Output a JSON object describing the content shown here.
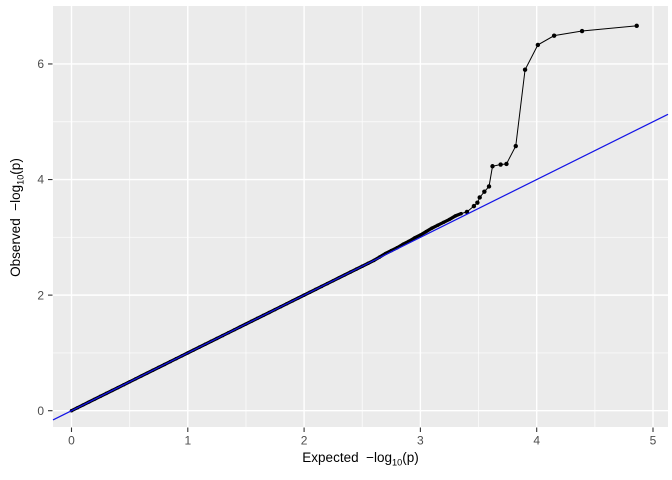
{
  "figure": {
    "background_color": "#FFFFFF",
    "panel_color": "#EBEBEB",
    "grid_color": "#FFFFFF",
    "tick_mark_color": "#333333",
    "tick_label_color": "#4D4D4D",
    "axis_title_color": "#000000",
    "point_color": "#000000",
    "identity_line_color": "#1414E6"
  },
  "chart_data": {
    "type": "scatter",
    "title": "",
    "xlabel": "Expected −log10(p)",
    "ylabel": "Observed −log10(p)",
    "xlabel_parts": {
      "prefix": "Expected  −log",
      "sub": "10",
      "suffix": "(p)"
    },
    "ylabel_parts": {
      "prefix": "Observed  −log",
      "sub": "10",
      "suffix": "(p)"
    },
    "xlim": [
      -0.159,
      5.129
    ],
    "ylim": [
      -0.282,
      7.003
    ],
    "x_ticks": [
      0,
      1,
      2,
      3,
      4,
      5
    ],
    "x_tick_labels": [
      "0",
      "1",
      "2",
      "3",
      "4",
      "5"
    ],
    "y_ticks": [
      0,
      2,
      4,
      6
    ],
    "y_tick_labels": [
      "0",
      "2",
      "4",
      "6"
    ],
    "x_minor_gridlines": [
      0.5,
      1.5,
      2.5,
      3.5,
      4.5
    ],
    "y_minor_gridlines": [
      1,
      3,
      5
    ],
    "grid": true,
    "legend": "none",
    "identity_line": {
      "slope": 1,
      "intercept": 0
    },
    "series": [
      {
        "name": "observed-vs-expected-dense",
        "marker": "point",
        "connected": true,
        "points": [
          [
            0,
            0
          ],
          [
            0.05,
            0.05
          ],
          [
            0.1,
            0.1
          ],
          [
            0.15,
            0.15
          ],
          [
            0.2,
            0.2
          ],
          [
            0.25,
            0.25
          ],
          [
            0.3,
            0.3
          ],
          [
            0.35,
            0.35
          ],
          [
            0.4,
            0.4
          ],
          [
            0.45,
            0.45
          ],
          [
            0.5,
            0.5
          ],
          [
            0.55,
            0.55
          ],
          [
            0.6,
            0.6
          ],
          [
            0.65,
            0.65
          ],
          [
            0.7,
            0.7
          ],
          [
            0.75,
            0.75
          ],
          [
            0.8,
            0.8
          ],
          [
            0.85,
            0.85
          ],
          [
            0.9,
            0.9
          ],
          [
            0.95,
            0.95
          ],
          [
            1,
            1
          ],
          [
            1.05,
            1.05
          ],
          [
            1.1,
            1.1
          ],
          [
            1.15,
            1.15
          ],
          [
            1.2,
            1.2
          ],
          [
            1.25,
            1.25
          ],
          [
            1.3,
            1.3
          ],
          [
            1.35,
            1.35
          ],
          [
            1.4,
            1.4
          ],
          [
            1.45,
            1.45
          ],
          [
            1.5,
            1.5
          ],
          [
            1.55,
            1.55
          ],
          [
            1.6,
            1.6
          ],
          [
            1.65,
            1.65
          ],
          [
            1.7,
            1.7
          ],
          [
            1.75,
            1.75
          ],
          [
            1.8,
            1.8
          ],
          [
            1.85,
            1.85
          ],
          [
            1.9,
            1.9
          ],
          [
            1.95,
            1.95
          ],
          [
            2,
            2
          ],
          [
            2.05,
            2.05
          ],
          [
            2.1,
            2.1
          ],
          [
            2.15,
            2.15
          ],
          [
            2.2,
            2.2
          ],
          [
            2.25,
            2.25
          ],
          [
            2.3,
            2.3
          ],
          [
            2.35,
            2.35
          ],
          [
            2.4,
            2.4
          ],
          [
            2.45,
            2.45
          ],
          [
            2.5,
            2.5
          ],
          [
            2.55,
            2.55
          ],
          [
            2.6,
            2.6
          ],
          [
            2.65,
            2.66
          ],
          [
            2.7,
            2.72
          ],
          [
            2.75,
            2.77
          ],
          [
            2.8,
            2.82
          ],
          [
            2.85,
            2.88
          ],
          [
            2.9,
            2.93
          ],
          [
            2.95,
            2.99
          ],
          [
            3,
            3.04
          ],
          [
            3.05,
            3.1
          ],
          [
            3.1,
            3.16
          ],
          [
            3.15,
            3.21
          ],
          [
            3.2,
            3.26
          ],
          [
            3.25,
            3.31
          ],
          [
            3.3,
            3.37
          ],
          [
            3.35,
            3.41
          ]
        ]
      },
      {
        "name": "observed-vs-expected-tail",
        "marker": "point",
        "connected": true,
        "points": [
          [
            3.4,
            3.44
          ],
          [
            3.46,
            3.54
          ],
          [
            3.49,
            3.6
          ],
          [
            3.51,
            3.69
          ],
          [
            3.55,
            3.79
          ],
          [
            3.59,
            3.88
          ],
          [
            3.62,
            4.23
          ],
          [
            3.69,
            4.26
          ],
          [
            3.74,
            4.27
          ],
          [
            3.82,
            4.58
          ],
          [
            3.9,
            5.9
          ],
          [
            4.01,
            6.33
          ],
          [
            4.15,
            6.49
          ],
          [
            4.39,
            6.57
          ],
          [
            4.86,
            6.66
          ]
        ]
      }
    ]
  }
}
